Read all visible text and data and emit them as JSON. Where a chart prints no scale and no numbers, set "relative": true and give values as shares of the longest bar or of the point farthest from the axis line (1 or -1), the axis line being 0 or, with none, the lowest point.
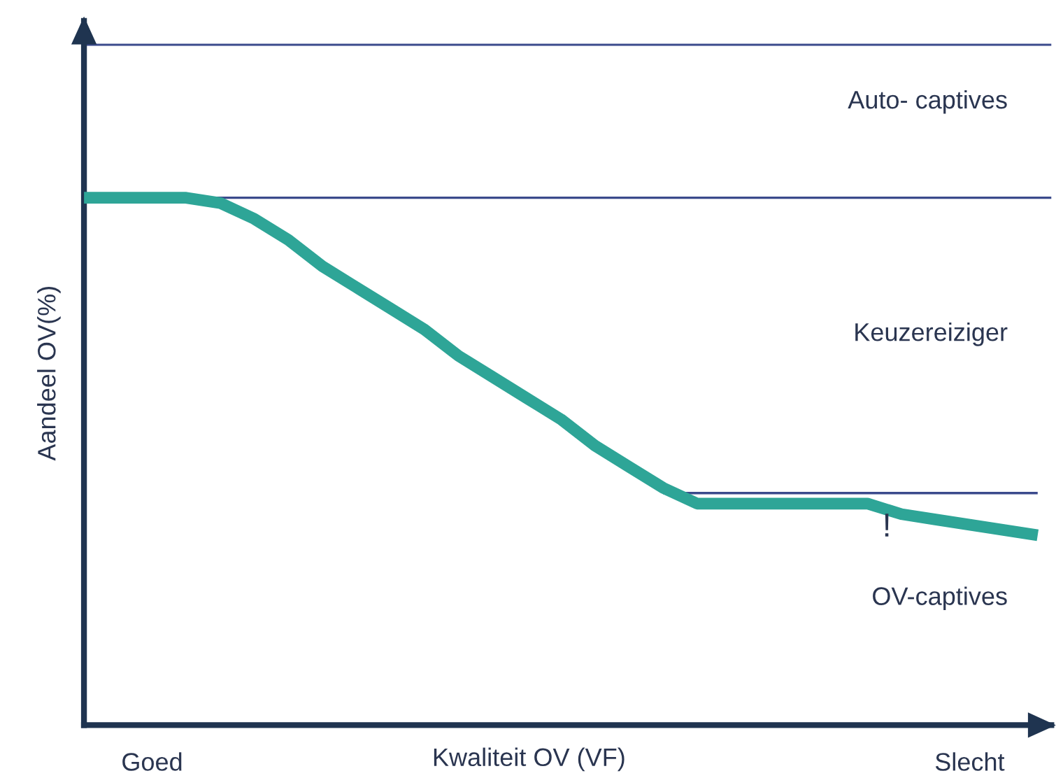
{
  "chart_data": {
    "type": "line",
    "relative": true,
    "xlabel": "Kwaliteit OV (VF)",
    "ylabel": "Aandeel OV(%)",
    "tick_labels": "x",
    "grid": false,
    "legend": false,
    "marker": "none",
    "line_style": "solid",
    "categories": [
      null,
      null,
      "Goed",
      null,
      null,
      null,
      null,
      null,
      null,
      null,
      null,
      null,
      null,
      null,
      null,
      null,
      null,
      null,
      null,
      null,
      null,
      null,
      null,
      null,
      null,
      null,
      "Slecht",
      null,
      null
    ],
    "series": [
      {
        "color": "#2ea597",
        "values": [
          1.0,
          1.0,
          1.0,
          1.0,
          0.99,
          0.96,
          0.92,
          0.87,
          0.83,
          0.79,
          0.75,
          0.7,
          0.66,
          0.62,
          0.58,
          0.53,
          0.49,
          0.45,
          0.42,
          0.42,
          0.42,
          0.42,
          0.42,
          0.42,
          0.4,
          0.39,
          0.38,
          0.37,
          0.36
        ]
      },
      {
        "color": "#3b4a8c",
        "values": [
          null,
          null,
          null,
          null,
          null,
          null,
          null,
          null,
          null,
          null,
          null,
          null,
          null,
          null,
          null,
          null,
          null,
          0.44,
          0.44,
          0.44,
          0.44,
          0.44,
          0.44,
          0.44,
          0.44,
          0.44,
          0.44,
          0.44,
          0.44
        ]
      }
    ],
    "ref_lines": [
      {
        "axis": "y",
        "value": 1.29,
        "color": "#3b4a8c"
      },
      {
        "axis": "y",
        "value": 1.0,
        "color": "#3b4a8c"
      }
    ],
    "annotations": [
      "Auto- captives",
      "Keuzereiziger",
      "OV-captives",
      "!"
    ]
  }
}
